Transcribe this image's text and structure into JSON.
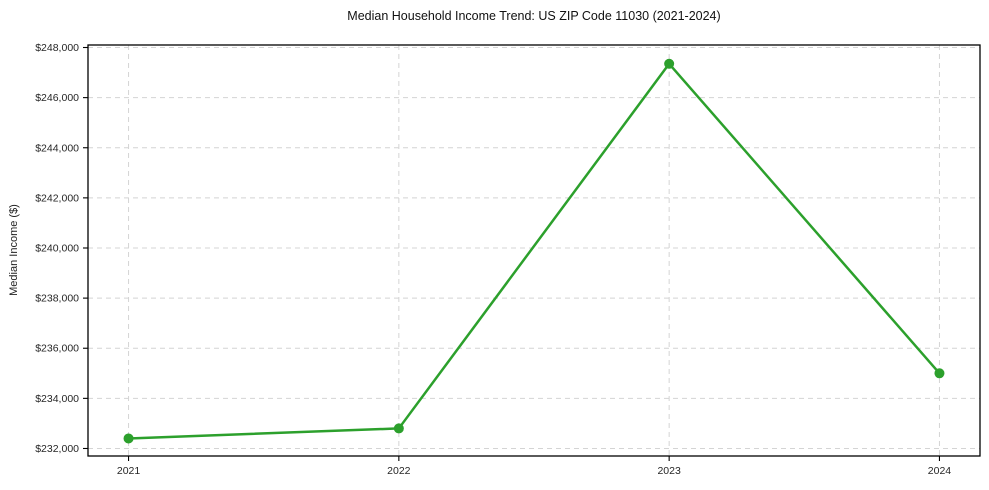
{
  "chart_data": {
    "type": "line",
    "title": "Median Household Income Trend: US ZIP Code 11030 (2021-2024)",
    "xlabel": "",
    "ylabel": "Median Income ($)",
    "series": [
      {
        "name": "Median Household Income",
        "x": [
          2021,
          2022,
          2023,
          2024
        ],
        "values": [
          232400,
          232800,
          247350,
          235000
        ]
      }
    ],
    "xticks": [
      {
        "value": 2021,
        "label": "2021"
      },
      {
        "value": 2022,
        "label": "2022"
      },
      {
        "value": 2023,
        "label": "2023"
      },
      {
        "value": 2024,
        "label": "2024"
      }
    ],
    "yticks": [
      {
        "value": 232000,
        "label": "$232,000"
      },
      {
        "value": 234000,
        "label": "$234,000"
      },
      {
        "value": 236000,
        "label": "$236,000"
      },
      {
        "value": 238000,
        "label": "$238,000"
      },
      {
        "value": 240000,
        "label": "$240,000"
      },
      {
        "value": 242000,
        "label": "$242,000"
      },
      {
        "value": 244000,
        "label": "$244,000"
      },
      {
        "value": 246000,
        "label": "$246,000"
      },
      {
        "value": 248000,
        "label": "$248,000"
      }
    ],
    "xlim": [
      2020.85,
      2024.15
    ],
    "ylim": [
      231700,
      248100
    ],
    "grid": true,
    "legend": "none",
    "line_color": "#2ca02c",
    "marker": "circle",
    "marker_color": "#2ca02c",
    "grid_color": "#d4d4d4",
    "background_color": "#ffffff"
  }
}
